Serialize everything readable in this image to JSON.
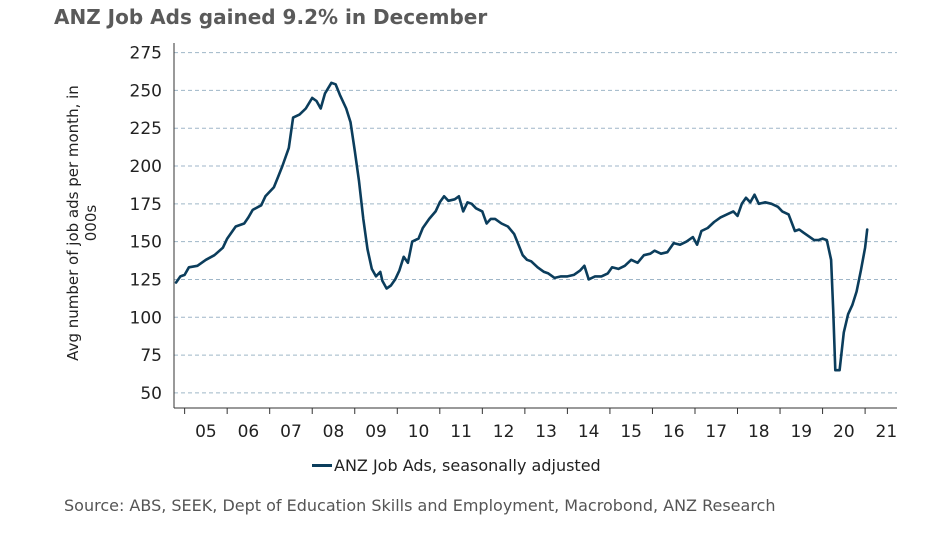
{
  "title": "ANZ Job Ads gained 9.2% in December",
  "source": "Source: ABS, SEEK, Dept of Education Skills and Employment, Macrobond, ANZ Research",
  "colors": {
    "line": "#0b3d5c",
    "grid": "#9fb6c8",
    "title": "#5a5a5a"
  },
  "chart_data": {
    "type": "line",
    "title": "ANZ Job Ads gained 9.2% in December",
    "ylabel": "Avg number of job ads per month, in 000s",
    "xlabel": "",
    "ylim": [
      40,
      280
    ],
    "yticks": [
      50,
      75,
      100,
      125,
      150,
      175,
      200,
      225,
      250,
      275
    ],
    "xlim": [
      2004.75,
      2021.75
    ],
    "xtick_labels": [
      "05",
      "06",
      "07",
      "08",
      "09",
      "10",
      "11",
      "12",
      "13",
      "14",
      "15",
      "16",
      "17",
      "18",
      "19",
      "20",
      "21"
    ],
    "grid": "horizontal dashed",
    "legend_position": "bottom",
    "series": [
      {
        "name": "ANZ Job Ads, seasonally adjusted",
        "points": [
          [
            2004.8,
            123
          ],
          [
            2004.9,
            127
          ],
          [
            2005.0,
            128
          ],
          [
            2005.1,
            133
          ],
          [
            2005.3,
            134
          ],
          [
            2005.5,
            138
          ],
          [
            2005.7,
            141
          ],
          [
            2005.9,
            146
          ],
          [
            2006.0,
            152
          ],
          [
            2006.2,
            160
          ],
          [
            2006.4,
            162
          ],
          [
            2006.5,
            166
          ],
          [
            2006.6,
            171
          ],
          [
            2006.8,
            174
          ],
          [
            2006.9,
            180
          ],
          [
            2007.1,
            186
          ],
          [
            2007.2,
            193
          ],
          [
            2007.3,
            200
          ],
          [
            2007.45,
            212
          ],
          [
            2007.55,
            232
          ],
          [
            2007.7,
            234
          ],
          [
            2007.85,
            238
          ],
          [
            2008.0,
            245
          ],
          [
            2008.1,
            243
          ],
          [
            2008.2,
            238
          ],
          [
            2008.3,
            248
          ],
          [
            2008.45,
            255
          ],
          [
            2008.55,
            254
          ],
          [
            2008.65,
            247
          ],
          [
            2008.8,
            238
          ],
          [
            2008.9,
            229
          ],
          [
            2009.0,
            210
          ],
          [
            2009.1,
            190
          ],
          [
            2009.2,
            165
          ],
          [
            2009.3,
            145
          ],
          [
            2009.4,
            132
          ],
          [
            2009.5,
            127
          ],
          [
            2009.6,
            130
          ],
          [
            2009.65,
            124
          ],
          [
            2009.75,
            119
          ],
          [
            2009.85,
            121
          ],
          [
            2009.95,
            125
          ],
          [
            2010.05,
            131
          ],
          [
            2010.15,
            140
          ],
          [
            2010.25,
            136
          ],
          [
            2010.35,
            150
          ],
          [
            2010.5,
            152
          ],
          [
            2010.6,
            159
          ],
          [
            2010.75,
            165
          ],
          [
            2010.9,
            170
          ],
          [
            2011.0,
            176
          ],
          [
            2011.1,
            180
          ],
          [
            2011.2,
            177
          ],
          [
            2011.35,
            178
          ],
          [
            2011.45,
            180
          ],
          [
            2011.55,
            170
          ],
          [
            2011.65,
            176
          ],
          [
            2011.75,
            175
          ],
          [
            2011.85,
            172
          ],
          [
            2012.0,
            170
          ],
          [
            2012.1,
            162
          ],
          [
            2012.2,
            165
          ],
          [
            2012.3,
            165
          ],
          [
            2012.45,
            162
          ],
          [
            2012.6,
            160
          ],
          [
            2012.75,
            155
          ],
          [
            2012.85,
            148
          ],
          [
            2012.95,
            141
          ],
          [
            2013.05,
            138
          ],
          [
            2013.15,
            137
          ],
          [
            2013.3,
            133
          ],
          [
            2013.45,
            130
          ],
          [
            2013.55,
            129
          ],
          [
            2013.7,
            126
          ],
          [
            2013.85,
            127
          ],
          [
            2014.0,
            127
          ],
          [
            2014.15,
            128
          ],
          [
            2014.3,
            131
          ],
          [
            2014.4,
            134
          ],
          [
            2014.5,
            125
          ],
          [
            2014.65,
            127
          ],
          [
            2014.8,
            127
          ],
          [
            2014.95,
            129
          ],
          [
            2015.05,
            133
          ],
          [
            2015.2,
            132
          ],
          [
            2015.35,
            134
          ],
          [
            2015.5,
            138
          ],
          [
            2015.65,
            136
          ],
          [
            2015.8,
            141
          ],
          [
            2015.95,
            142
          ],
          [
            2016.05,
            144
          ],
          [
            2016.2,
            142
          ],
          [
            2016.35,
            143
          ],
          [
            2016.5,
            149
          ],
          [
            2016.65,
            148
          ],
          [
            2016.8,
            150
          ],
          [
            2016.95,
            153
          ],
          [
            2017.05,
            148
          ],
          [
            2017.15,
            157
          ],
          [
            2017.3,
            159
          ],
          [
            2017.45,
            163
          ],
          [
            2017.6,
            166
          ],
          [
            2017.75,
            168
          ],
          [
            2017.9,
            170
          ],
          [
            2018.0,
            167
          ],
          [
            2018.1,
            175
          ],
          [
            2018.2,
            179
          ],
          [
            2018.3,
            176
          ],
          [
            2018.4,
            181
          ],
          [
            2018.5,
            175
          ],
          [
            2018.65,
            176
          ],
          [
            2018.8,
            175
          ],
          [
            2018.95,
            173
          ],
          [
            2019.05,
            170
          ],
          [
            2019.2,
            168
          ],
          [
            2019.35,
            157
          ],
          [
            2019.45,
            158
          ],
          [
            2019.55,
            156
          ],
          [
            2019.65,
            154
          ],
          [
            2019.8,
            151
          ],
          [
            2019.9,
            151
          ],
          [
            2020.0,
            152
          ],
          [
            2020.1,
            151
          ],
          [
            2020.2,
            138
          ],
          [
            2020.25,
            105
          ],
          [
            2020.3,
            65
          ],
          [
            2020.4,
            65
          ],
          [
            2020.5,
            90
          ],
          [
            2020.6,
            102
          ],
          [
            2020.7,
            108
          ],
          [
            2020.8,
            117
          ],
          [
            2020.9,
            131
          ],
          [
            2021.0,
            146
          ],
          [
            2021.05,
            158
          ]
        ]
      }
    ]
  }
}
